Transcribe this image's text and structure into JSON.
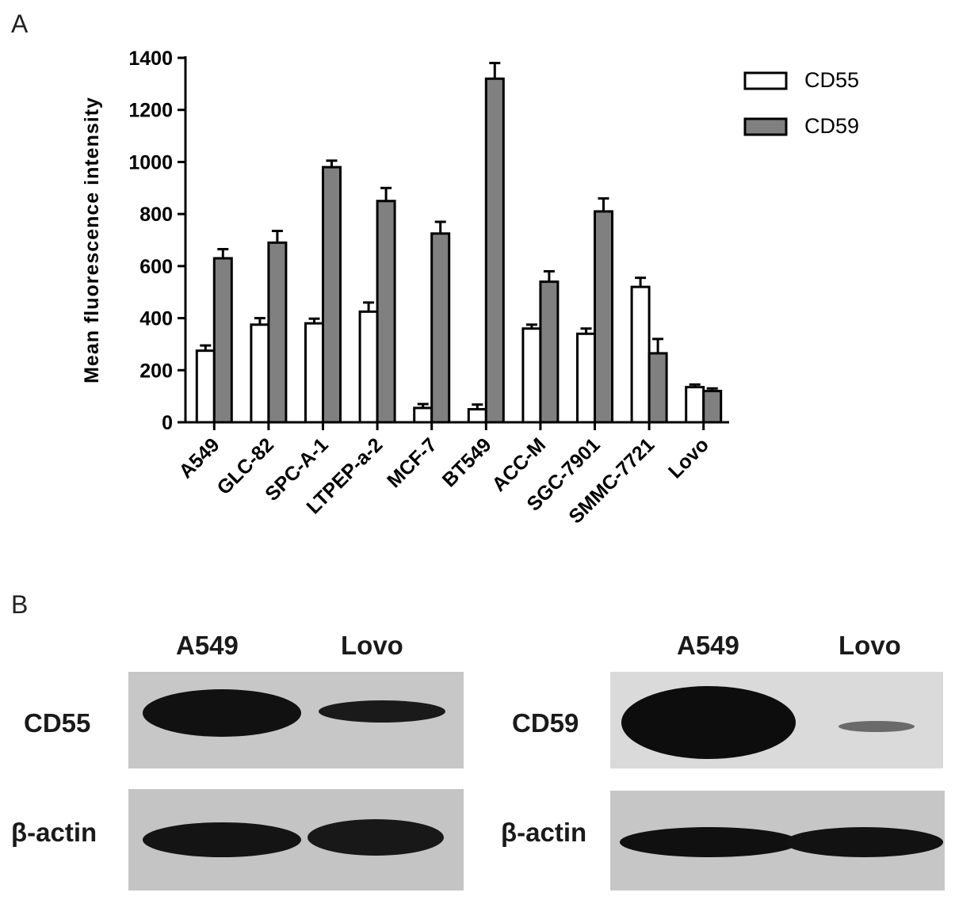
{
  "panel_a_label": "A",
  "panel_b_label": "B",
  "chart_data": {
    "type": "bar",
    "title": "",
    "xlabel": "",
    "ylabel": "Mean fluorescence intensity",
    "ylim": [
      0,
      1400
    ],
    "yticks": [
      0,
      200,
      400,
      600,
      800,
      1000,
      1200,
      1400
    ],
    "grid": false,
    "legend_position": "top-right",
    "categories": [
      "A549",
      "GLC-82",
      "SPC-A-1",
      "LTPEP-a-2",
      "MCF-7",
      "BT549",
      "ACC-M",
      "SGC-7901",
      "SMMC-7721",
      "Lovo"
    ],
    "series": [
      {
        "name": "CD55",
        "color": "#ffffff",
        "values": [
          275,
          375,
          380,
          425,
          55,
          50,
          360,
          340,
          520,
          135
        ],
        "errors": [
          20,
          25,
          18,
          35,
          15,
          18,
          15,
          20,
          35,
          10
        ]
      },
      {
        "name": "CD59",
        "color": "#808080",
        "values": [
          630,
          690,
          980,
          850,
          725,
          1320,
          540,
          810,
          265,
          120
        ],
        "errors": [
          35,
          45,
          25,
          50,
          45,
          60,
          40,
          50,
          55,
          10
        ]
      }
    ]
  },
  "blots": [
    {
      "lanes": [
        "A549",
        "Lovo"
      ],
      "rows": [
        {
          "label": "CD55",
          "band_strength": [
            1.0,
            0.45
          ]
        },
        {
          "label": "β-actin",
          "band_strength": [
            0.95,
            0.9
          ]
        }
      ]
    },
    {
      "lanes": [
        "A549",
        "Lovo"
      ],
      "rows": [
        {
          "label": "CD59",
          "band_strength": [
            1.0,
            0.15
          ]
        },
        {
          "label": "β-actin",
          "band_strength": [
            0.95,
            0.95
          ]
        }
      ]
    }
  ]
}
